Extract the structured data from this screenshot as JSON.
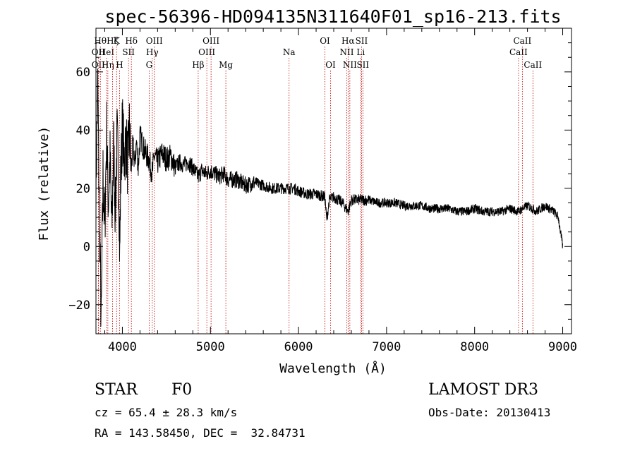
{
  "chart_data": {
    "type": "line",
    "title": "spec-56396-HD094135N311640F01_sp16-213.fits",
    "xlabel": "Wavelength (Å)",
    "ylabel": "Flux (relative)",
    "xlim": [
      3700,
      9100
    ],
    "ylim": [
      -30,
      75
    ],
    "xticks": [
      4000,
      5000,
      6000,
      7000,
      8000,
      9000
    ],
    "yticks": [
      -20,
      0,
      20,
      40,
      60
    ],
    "series": [
      {
        "name": "spectrum",
        "x": [
          3700,
          3720,
          3740,
          3760,
          3780,
          3800,
          3820,
          3840,
          3860,
          3880,
          3900,
          3920,
          3940,
          3960,
          3970,
          3980,
          4000,
          4020,
          4040,
          4060,
          4080,
          4100,
          4120,
          4140,
          4160,
          4180,
          4200,
          4250,
          4300,
          4340,
          4360,
          4400,
          4450,
          4500,
          4550,
          4600,
          4650,
          4700,
          4750,
          4800,
          4861,
          4900,
          4950,
          5000,
          5050,
          5100,
          5150,
          5200,
          5300,
          5400,
          5500,
          5600,
          5700,
          5800,
          5893,
          5950,
          6000,
          6100,
          6200,
          6300,
          6320,
          6350,
          6400,
          6450,
          6500,
          6563,
          6600,
          6700,
          6800,
          6900,
          7000,
          7100,
          7200,
          7300,
          7400,
          7500,
          7600,
          7700,
          7800,
          7900,
          8000,
          8100,
          8200,
          8300,
          8400,
          8498,
          8542,
          8600,
          8662,
          8700,
          8750,
          8800,
          8850,
          8900,
          8950,
          9000
        ],
        "y": [
          20,
          55,
          10,
          -28,
          25,
          5,
          40,
          15,
          30,
          5,
          36,
          12,
          38,
          20,
          -5,
          22,
          42,
          30,
          37,
          28,
          40,
          26,
          35,
          28,
          36,
          27,
          38,
          33,
          30,
          25,
          31,
          29,
          32,
          30,
          31,
          27,
          29,
          28,
          29,
          27,
          24,
          26,
          25,
          26,
          25,
          24,
          25,
          23,
          23,
          21,
          22,
          21,
          20,
          20,
          20,
          20,
          19,
          18,
          18,
          17,
          9,
          16,
          17,
          16,
          15,
          12,
          16,
          16,
          16,
          15,
          15,
          15,
          14,
          14,
          14,
          13,
          13,
          13,
          12,
          12,
          13,
          12,
          12,
          12,
          13,
          12,
          13,
          14,
          13,
          12,
          13,
          14,
          13,
          12,
          10,
          0
        ]
      }
    ],
    "line_markers": [
      {
        "w": 3727,
        "label": "OII",
        "row": 2
      },
      {
        "w": 3727,
        "label": "OII",
        "row": 3
      },
      {
        "w": 3750,
        "label": "Hθ",
        "row": 1
      },
      {
        "w": 3835,
        "label": "Hη",
        "row": 3
      },
      {
        "w": 3820,
        "label": "HeI",
        "row": 2
      },
      {
        "w": 3889,
        "label": "Hζ",
        "row": 1
      },
      {
        "w": 3934,
        "label": "K",
        "row": 1
      },
      {
        "w": 3968,
        "label": "H",
        "row": 3
      },
      {
        "w": 4070,
        "label": "SII",
        "row": 2
      },
      {
        "w": 4102,
        "label": "Hδ",
        "row": 1
      },
      {
        "w": 4304,
        "label": "G",
        "row": 3
      },
      {
        "w": 4340,
        "label": "Hγ",
        "row": 2
      },
      {
        "w": 4363,
        "label": "OIII",
        "row": 1
      },
      {
        "w": 4861,
        "label": "Hβ",
        "row": 3
      },
      {
        "w": 4959,
        "label": "OIII",
        "row": 2
      },
      {
        "w": 5007,
        "label": "OIII",
        "row": 1
      },
      {
        "w": 5175,
        "label": "Mg",
        "row": 3
      },
      {
        "w": 5893,
        "label": "Na",
        "row": 2
      },
      {
        "w": 6300,
        "label": "OI",
        "row": 1
      },
      {
        "w": 6364,
        "label": "OI",
        "row": 3
      },
      {
        "w": 6548,
        "label": "NII",
        "row": 2
      },
      {
        "w": 6563,
        "label": "Hα",
        "row": 1
      },
      {
        "w": 6583,
        "label": "NII",
        "row": 3
      },
      {
        "w": 6707,
        "label": "Li",
        "row": 2
      },
      {
        "w": 6716,
        "label": "SII",
        "row": 1
      },
      {
        "w": 6731,
        "label": "SII",
        "row": 3
      },
      {
        "w": 8498,
        "label": "CaII",
        "row": 2
      },
      {
        "w": 8542,
        "label": "CaII",
        "row": 1
      },
      {
        "w": 8662,
        "label": "CaII",
        "row": 3
      }
    ]
  },
  "info": {
    "object_class": "STAR",
    "subclass": "F0",
    "cz": "cz = 65.4 ± 28.3 km/s",
    "coords": "RA = 143.58450, DEC =  32.84731",
    "survey": "LAMOST DR3",
    "obs_date": "Obs-Date: 20130413"
  }
}
